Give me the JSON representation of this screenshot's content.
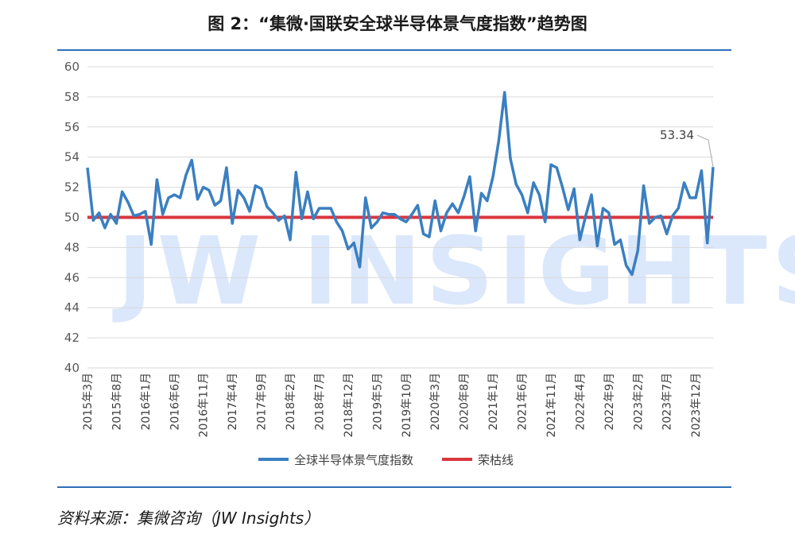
{
  "title": "图 2：“集微·国联安全球半导体景气度指数”趋势图",
  "source": "资料来源：集微咨询（JW Insights）",
  "watermark": "JW INSIGHTS",
  "colors": {
    "index_line": "#3a7fc1",
    "threshold_line": "#d9363e",
    "rule": "#2f6fb7",
    "grid": "#d9d9d9"
  },
  "chart_data": {
    "type": "line",
    "ylim": [
      40,
      60
    ],
    "yticks": [
      40,
      42,
      44,
      46,
      48,
      50,
      52,
      54,
      56,
      58,
      60
    ],
    "grid": true,
    "legend_position": "bottom",
    "x_tick_labels": [
      "2015年3月",
      "2015年8月",
      "2016年1月",
      "2016年6月",
      "2016年11月",
      "2017年4月",
      "2017年9月",
      "2018年2月",
      "2018年7月",
      "2018年12月",
      "2019年5月",
      "2019年10月",
      "2020年3月",
      "2020年8月",
      "2021年1月",
      "2021年6月",
      "2021年11月",
      "2022年4月",
      "2022年9月",
      "2023年2月",
      "2023年7月",
      "2023年12月"
    ],
    "annotation": {
      "text": "53.34",
      "value": 53.34
    },
    "series": [
      {
        "name": "全球半导体景气度指数",
        "values": [
          53.3,
          49.8,
          50.3,
          49.3,
          50.2,
          49.6,
          51.7,
          51.0,
          50.1,
          50.2,
          50.4,
          48.2,
          52.5,
          50.2,
          51.3,
          51.5,
          51.3,
          52.8,
          53.8,
          51.2,
          52.0,
          51.8,
          50.8,
          51.1,
          53.3,
          49.6,
          51.8,
          51.3,
          50.4,
          52.1,
          51.9,
          50.7,
          50.3,
          49.8,
          50.1,
          48.5,
          53.0,
          49.9,
          51.7,
          49.9,
          50.6,
          50.6,
          50.6,
          49.7,
          49.1,
          47.9,
          48.3,
          46.7,
          51.3,
          49.3,
          49.7,
          50.3,
          50.2,
          50.2,
          49.9,
          49.7,
          50.2,
          50.8,
          48.9,
          48.7,
          51.1,
          49.1,
          50.3,
          50.9,
          50.3,
          51.4,
          52.7,
          49.1,
          51.6,
          51.1,
          52.7,
          55.1,
          58.3,
          53.9,
          52.2,
          51.5,
          50.3,
          52.3,
          51.5,
          49.7,
          53.5,
          53.3,
          52.0,
          50.5,
          51.9,
          48.5,
          50.1,
          51.5,
          48.1,
          50.6,
          50.3,
          48.2,
          48.5,
          46.8,
          46.2,
          47.8,
          52.1,
          49.6,
          50.0,
          50.1,
          48.9,
          50.1,
          50.6,
          52.3,
          51.3,
          51.3,
          53.1,
          48.3,
          53.34
        ]
      },
      {
        "name": "荣枯线",
        "values": [
          50,
          50
        ]
      }
    ]
  }
}
